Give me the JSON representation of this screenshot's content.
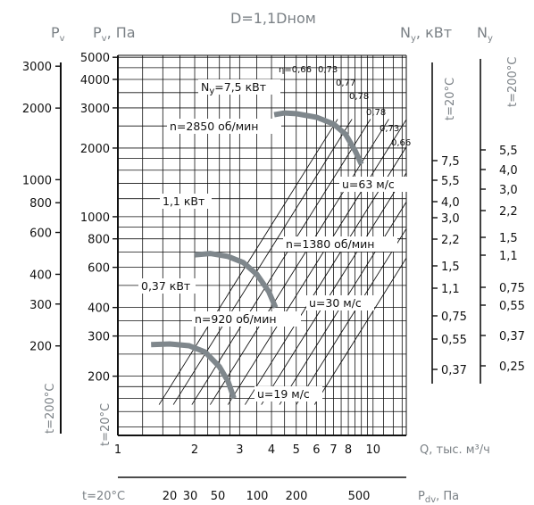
{
  "header": {
    "pv_left": "P",
    "pv_left_sub": "v",
    "pv_pa": "P",
    "pv_pa_sub": "v",
    "pv_pa_unit": ", Па",
    "title": "D=1,1Dном",
    "ny_kw": "N",
    "ny_kw_sub": "y",
    "ny_kw_unit": ", кВт",
    "ny_right": "N",
    "ny_right_sub": "y"
  },
  "colors": {
    "curve": "#7f878c",
    "grid": "#111111",
    "text_gray": "#7b8186"
  },
  "chart_data": {
    "type": "line",
    "title": "D=1,1Dном",
    "x_axis": {
      "label": "Q, тыс. м³/ч",
      "scale": "log",
      "range": [
        1,
        13.5
      ],
      "ticks": [
        "1",
        "2",
        "3",
        "4",
        "5",
        "6",
        "7",
        "8",
        "10"
      ]
    },
    "y_axis_outer": {
      "label": "P",
      "sub": "v",
      "side_label": "t=200°C",
      "scale": "log",
      "ticks": [
        "3000",
        "2000",
        "1000",
        "800",
        "600",
        "400",
        "300",
        "200"
      ]
    },
    "y_axis_inner": {
      "label": "P",
      "sub": "v",
      "unit": ", Па",
      "side_label": "t=20°C",
      "scale": "log",
      "range": [
        110,
        5100
      ],
      "ticks": [
        "5000",
        "4000",
        "3000",
        "2000",
        "1000",
        "800",
        "600",
        "400",
        "300",
        "200"
      ]
    },
    "y_axis_right_inner": {
      "label": "N",
      "sub": "y",
      "unit": ", кВт",
      "side_label": "t=20°C",
      "ticks": [
        "7,5",
        "5,5",
        "4,0",
        "3,0",
        "2,2",
        "1,5",
        "1,1",
        "0,75",
        "0,55",
        "0,37"
      ]
    },
    "y_axis_right_outer": {
      "label": "N",
      "sub": "y",
      "side_label": "t=200°C",
      "ticks": [
        "5,5",
        "4,0",
        "3,0",
        "2,2",
        "1,5",
        "1,1",
        "0,75",
        "0,55",
        "0,37",
        "0,25"
      ]
    },
    "bottom_axis": {
      "left_label": "t=20°C",
      "label": "P",
      "sub": "dv",
      "unit": ", Па",
      "ticks": [
        "20",
        "30",
        "50",
        "100",
        "200",
        "500"
      ]
    },
    "efficiency_labels": [
      "η=0,66",
      "0,73",
      "0,77",
      "0,78",
      "0,78",
      "0,73",
      "0,66"
    ],
    "series": [
      {
        "speed_label": "n=2850 об/мин",
        "tip_speed_label": "u=63 м/с",
        "points": [
          [
            4.1,
            2800
          ],
          [
            4.5,
            2850
          ],
          [
            5.0,
            2830
          ],
          [
            6.0,
            2730
          ],
          [
            7.0,
            2550
          ],
          [
            7.8,
            2300
          ],
          [
            8.5,
            1950
          ],
          [
            9.0,
            1700
          ]
        ]
      },
      {
        "speed_label": "n=1380 об/мин",
        "tip_speed_label": "u=30 м/с",
        "points": [
          [
            2.0,
            680
          ],
          [
            2.3,
            690
          ],
          [
            2.7,
            670
          ],
          [
            3.1,
            630
          ],
          [
            3.5,
            560
          ],
          [
            3.9,
            470
          ],
          [
            4.15,
            400
          ]
        ]
      },
      {
        "speed_label": "n=920 об/мин",
        "tip_speed_label": "u=19 м/с",
        "points": [
          [
            1.35,
            275
          ],
          [
            1.6,
            277
          ],
          [
            1.9,
            272
          ],
          [
            2.2,
            255
          ],
          [
            2.5,
            220
          ],
          [
            2.7,
            190
          ],
          [
            2.85,
            160
          ]
        ]
      }
    ],
    "power_labels": [
      {
        "text": "N",
        "sub": "y",
        "tail": "=7,5 кВт"
      },
      {
        "text": "1,1 кВт"
      },
      {
        "text": "0,37 кВт"
      }
    ],
    "grid": true
  }
}
